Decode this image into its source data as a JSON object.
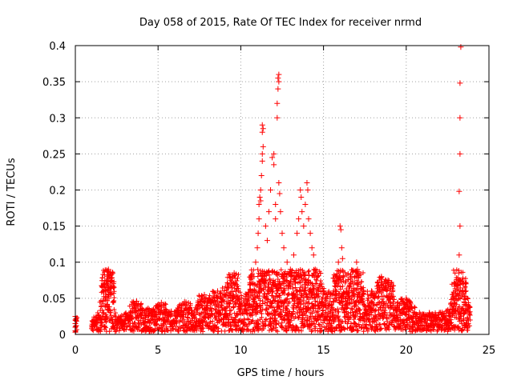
{
  "chart_data": {
    "type": "scatter",
    "title": "Day 058 of 2015, Rate Of TEC Index for receiver nrmd",
    "xlabel": "GPS time / hours",
    "ylabel": "ROTI / TECUs",
    "xlim": [
      0,
      25
    ],
    "ylim": [
      0,
      0.4
    ],
    "xticks": [
      0,
      5,
      10,
      15,
      20,
      25
    ],
    "xtick_labels": [
      "0",
      "5",
      "10",
      "15",
      "20",
      "25"
    ],
    "yticks": [
      0,
      0.05,
      0.1,
      0.15,
      0.2,
      0.25,
      0.3,
      0.35,
      0.4
    ],
    "ytick_labels": [
      "0",
      "0.05",
      "0.1",
      "0.15",
      "0.2",
      "0.25",
      "0.3",
      "0.35",
      "0.4"
    ],
    "grid": true,
    "marker": "+",
    "series": [
      {
        "name": "ROTI",
        "color": "#ff0000",
        "points": [
          [
            0.0,
            0.025
          ],
          [
            0.0,
            0.02
          ],
          [
            0.0,
            0.015
          ],
          [
            0.0,
            0.01
          ],
          [
            0.0,
            0.005
          ],
          [
            0.05,
            0.022
          ],
          [
            0.05,
            0.012
          ],
          [
            0.0,
            0.003
          ],
          [
            1.0,
            0.012
          ],
          [
            1.0,
            0.008
          ],
          [
            1.1,
            0.018
          ],
          [
            1.2,
            0.014
          ],
          [
            1.3,
            0.02
          ],
          [
            1.4,
            0.026
          ],
          [
            1.5,
            0.022
          ],
          [
            1.6,
            0.016
          ],
          [
            1.7,
            0.03
          ],
          [
            1.8,
            0.04
          ],
          [
            1.8,
            0.05
          ],
          [
            1.85,
            0.06
          ],
          [
            1.9,
            0.07
          ],
          [
            1.9,
            0.075
          ],
          [
            1.95,
            0.08
          ],
          [
            2.0,
            0.082
          ],
          [
            1.95,
            0.088
          ],
          [
            2.0,
            0.09
          ],
          [
            1.85,
            0.065
          ],
          [
            2.0,
            0.055
          ],
          [
            2.1,
            0.03
          ],
          [
            2.2,
            0.02
          ],
          [
            2.4,
            0.018
          ],
          [
            2.6,
            0.024
          ],
          [
            2.8,
            0.02
          ],
          [
            3.0,
            0.028
          ],
          [
            3.2,
            0.022
          ],
          [
            3.4,
            0.03
          ],
          [
            3.6,
            0.04
          ],
          [
            3.7,
            0.046
          ],
          [
            3.8,
            0.034
          ],
          [
            4.0,
            0.026
          ],
          [
            4.2,
            0.03
          ],
          [
            4.4,
            0.036
          ],
          [
            4.6,
            0.03
          ],
          [
            4.8,
            0.028
          ],
          [
            5.0,
            0.035
          ],
          [
            5.2,
            0.044
          ],
          [
            5.4,
            0.03
          ],
          [
            5.6,
            0.026
          ],
          [
            5.8,
            0.032
          ],
          [
            6.0,
            0.028
          ],
          [
            6.2,
            0.03
          ],
          [
            6.4,
            0.04
          ],
          [
            6.6,
            0.045
          ],
          [
            6.8,
            0.034
          ],
          [
            7.0,
            0.028
          ],
          [
            7.2,
            0.032
          ],
          [
            7.4,
            0.036
          ],
          [
            7.6,
            0.048
          ],
          [
            7.8,
            0.055
          ],
          [
            8.0,
            0.04
          ],
          [
            8.2,
            0.045
          ],
          [
            8.4,
            0.05
          ],
          [
            8.6,
            0.06
          ],
          [
            8.8,
            0.05
          ],
          [
            9.0,
            0.056
          ],
          [
            9.2,
            0.065
          ],
          [
            9.4,
            0.07
          ],
          [
            9.5,
            0.08
          ],
          [
            9.6,
            0.085
          ],
          [
            9.7,
            0.06
          ],
          [
            9.9,
            0.035
          ],
          [
            10.1,
            0.03
          ],
          [
            10.3,
            0.04
          ],
          [
            10.5,
            0.05
          ],
          [
            10.6,
            0.06
          ],
          [
            10.8,
            0.08
          ],
          [
            10.9,
            0.1
          ],
          [
            11.0,
            0.12
          ],
          [
            11.05,
            0.14
          ],
          [
            11.1,
            0.16
          ],
          [
            11.1,
            0.18
          ],
          [
            11.15,
            0.19
          ],
          [
            11.2,
            0.2
          ],
          [
            11.2,
            0.185
          ],
          [
            11.25,
            0.22
          ],
          [
            11.3,
            0.24
          ],
          [
            11.3,
            0.25
          ],
          [
            11.35,
            0.26
          ],
          [
            11.3,
            0.28
          ],
          [
            11.35,
            0.285
          ],
          [
            11.3,
            0.29
          ],
          [
            11.5,
            0.15
          ],
          [
            11.6,
            0.13
          ],
          [
            11.7,
            0.17
          ],
          [
            11.8,
            0.2
          ],
          [
            11.9,
            0.245
          ],
          [
            12.0,
            0.25
          ],
          [
            12.0,
            0.235
          ],
          [
            12.1,
            0.18
          ],
          [
            12.1,
            0.16
          ],
          [
            12.2,
            0.3
          ],
          [
            12.2,
            0.32
          ],
          [
            12.25,
            0.34
          ],
          [
            12.3,
            0.35
          ],
          [
            12.3,
            0.36
          ],
          [
            12.25,
            0.355
          ],
          [
            12.3,
            0.21
          ],
          [
            12.35,
            0.195
          ],
          [
            12.4,
            0.17
          ],
          [
            12.5,
            0.14
          ],
          [
            12.6,
            0.12
          ],
          [
            12.8,
            0.1
          ],
          [
            13.0,
            0.09
          ],
          [
            13.2,
            0.11
          ],
          [
            13.4,
            0.14
          ],
          [
            13.5,
            0.16
          ],
          [
            13.6,
            0.2
          ],
          [
            13.65,
            0.19
          ],
          [
            13.7,
            0.17
          ],
          [
            13.8,
            0.15
          ],
          [
            13.9,
            0.18
          ],
          [
            14.0,
            0.21
          ],
          [
            14.05,
            0.2
          ],
          [
            14.1,
            0.16
          ],
          [
            14.2,
            0.14
          ],
          [
            14.3,
            0.12
          ],
          [
            14.4,
            0.11
          ],
          [
            14.5,
            0.09
          ],
          [
            14.8,
            0.07
          ],
          [
            15.0,
            0.06
          ],
          [
            15.2,
            0.055
          ],
          [
            15.4,
            0.05
          ],
          [
            15.6,
            0.06
          ],
          [
            15.8,
            0.07
          ],
          [
            15.9,
            0.1
          ],
          [
            16.0,
            0.15
          ],
          [
            16.05,
            0.145
          ],
          [
            16.1,
            0.12
          ],
          [
            16.15,
            0.105
          ],
          [
            16.2,
            0.08
          ],
          [
            16.4,
            0.06
          ],
          [
            16.6,
            0.05
          ],
          [
            16.8,
            0.06
          ],
          [
            16.9,
            0.08
          ],
          [
            17.0,
            0.1
          ],
          [
            17.05,
            0.09
          ],
          [
            17.1,
            0.07
          ],
          [
            17.3,
            0.05
          ],
          [
            17.5,
            0.04
          ],
          [
            17.7,
            0.05
          ],
          [
            17.9,
            0.06
          ],
          [
            18.1,
            0.05
          ],
          [
            18.3,
            0.06
          ],
          [
            18.5,
            0.08
          ],
          [
            18.6,
            0.07
          ],
          [
            18.8,
            0.065
          ],
          [
            18.9,
            0.075
          ],
          [
            19.0,
            0.05
          ],
          [
            19.2,
            0.04
          ],
          [
            19.4,
            0.035
          ],
          [
            19.6,
            0.04
          ],
          [
            19.8,
            0.045
          ],
          [
            20.0,
            0.05
          ],
          [
            20.2,
            0.04
          ],
          [
            20.4,
            0.03
          ],
          [
            20.6,
            0.025
          ],
          [
            20.8,
            0.03
          ],
          [
            21.0,
            0.028
          ],
          [
            21.2,
            0.025
          ],
          [
            21.4,
            0.03
          ],
          [
            21.6,
            0.028
          ],
          [
            21.8,
            0.026
          ],
          [
            22.0,
            0.03
          ],
          [
            22.2,
            0.028
          ],
          [
            22.4,
            0.032
          ],
          [
            22.6,
            0.03
          ],
          [
            22.8,
            0.035
          ],
          [
            23.0,
            0.05
          ],
          [
            23.1,
            0.07
          ],
          [
            23.15,
            0.075
          ],
          [
            23.2,
            0.11
          ],
          [
            23.25,
            0.15
          ],
          [
            23.2,
            0.198
          ],
          [
            23.25,
            0.25
          ],
          [
            23.25,
            0.3
          ],
          [
            23.25,
            0.348
          ],
          [
            23.3,
            0.398
          ],
          [
            23.4,
            0.06
          ],
          [
            23.5,
            0.045
          ],
          [
            23.6,
            0.04
          ],
          [
            23.7,
            0.035
          ],
          [
            23.8,
            0.028
          ]
        ]
      }
    ]
  }
}
